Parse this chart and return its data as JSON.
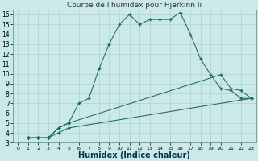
{
  "title": "Courbe de l'humidex pour Hjerkinn Ii",
  "xlabel": "Humidex (Indice chaleur)",
  "background_color": "#cce9e9",
  "line_color": "#1a6b5a",
  "xlim": [
    -0.5,
    23.5
  ],
  "ylim": [
    3,
    16.5
  ],
  "xticks": [
    0,
    1,
    2,
    3,
    4,
    5,
    6,
    7,
    8,
    9,
    10,
    11,
    12,
    13,
    14,
    15,
    16,
    17,
    18,
    19,
    20,
    21,
    22,
    23
  ],
  "yticks": [
    3,
    4,
    5,
    6,
    7,
    8,
    9,
    10,
    11,
    12,
    13,
    14,
    15,
    16
  ],
  "line1_x": [
    1,
    2,
    3,
    4,
    5,
    6,
    7,
    8,
    9,
    10,
    11,
    12,
    13,
    14,
    15,
    16,
    17,
    18,
    19,
    20,
    21,
    22,
    23
  ],
  "line1_y": [
    3.5,
    3.5,
    3.5,
    4.5,
    5.0,
    7.0,
    7.5,
    10.5,
    13.0,
    15.0,
    16.0,
    15.0,
    15.5,
    15.5,
    15.5,
    16.2,
    14.0,
    11.5,
    9.9,
    8.5,
    8.3,
    7.5,
    7.5
  ],
  "line2_x": [
    1,
    2,
    3,
    4,
    5,
    20,
    21,
    22,
    23
  ],
  "line2_y": [
    3.5,
    3.5,
    3.5,
    4.5,
    5.0,
    9.9,
    8.5,
    8.3,
    7.5
  ],
  "line3_x": [
    1,
    2,
    3,
    4,
    5,
    23
  ],
  "line3_y": [
    3.5,
    3.5,
    3.5,
    4.0,
    4.5,
    7.5
  ],
  "grid_color": "#b0d0d0",
  "tick_fontsize": 5.5,
  "xlabel_fontsize": 7,
  "title_fontsize": 6.5
}
